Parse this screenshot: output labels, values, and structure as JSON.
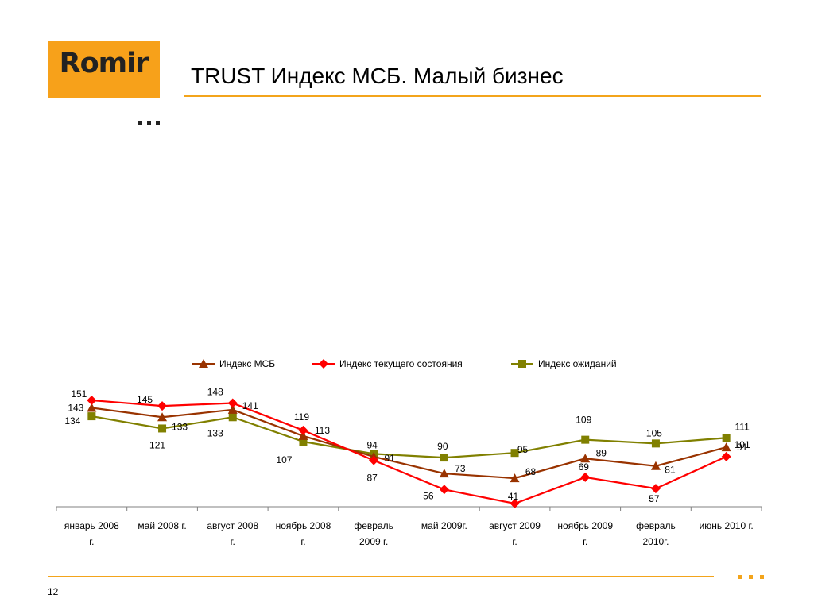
{
  "logo": {
    "text": "Romir"
  },
  "slide": {
    "title": "TRUST Индекс МСБ. Малый бизнес",
    "page_number": "12"
  },
  "colors": {
    "accent": "#f3a41b",
    "logo_bg": "#f7a11a",
    "series_msb": "#993300",
    "series_current": "#ff0000",
    "series_expect": "#808000"
  },
  "chart_data": {
    "type": "line",
    "categories": [
      [
        "январь 2008",
        "г."
      ],
      [
        "май 2008 г."
      ],
      [
        "август 2008",
        "г."
      ],
      [
        "ноябрь 2008",
        "г."
      ],
      [
        "февраль",
        "2009 г."
      ],
      [
        "май 2009г."
      ],
      [
        "август 2009",
        "г."
      ],
      [
        "ноябрь 2009",
        "г."
      ],
      [
        "февраль",
        "2010г."
      ],
      [
        "июнь 2010 г."
      ]
    ],
    "series": [
      {
        "name": "Индекс МСБ",
        "marker": "triangle",
        "color": "#993300",
        "values": [
          143,
          133,
          141,
          113,
          91,
          73,
          68,
          89,
          81,
          101
        ]
      },
      {
        "name": "Индекс текущего состояния",
        "marker": "diamond",
        "color": "#ff0000",
        "values": [
          151,
          145,
          148,
          119,
          87,
          56,
          41,
          69,
          57,
          91
        ]
      },
      {
        "name": "Индекс ожиданий",
        "marker": "square",
        "color": "#808000",
        "values": [
          134,
          121,
          133,
          107,
          94,
          90,
          95,
          109,
          105,
          111
        ]
      }
    ],
    "data_labels": true,
    "legend": "top",
    "grid": false,
    "xlabel": "",
    "ylabel": ""
  }
}
